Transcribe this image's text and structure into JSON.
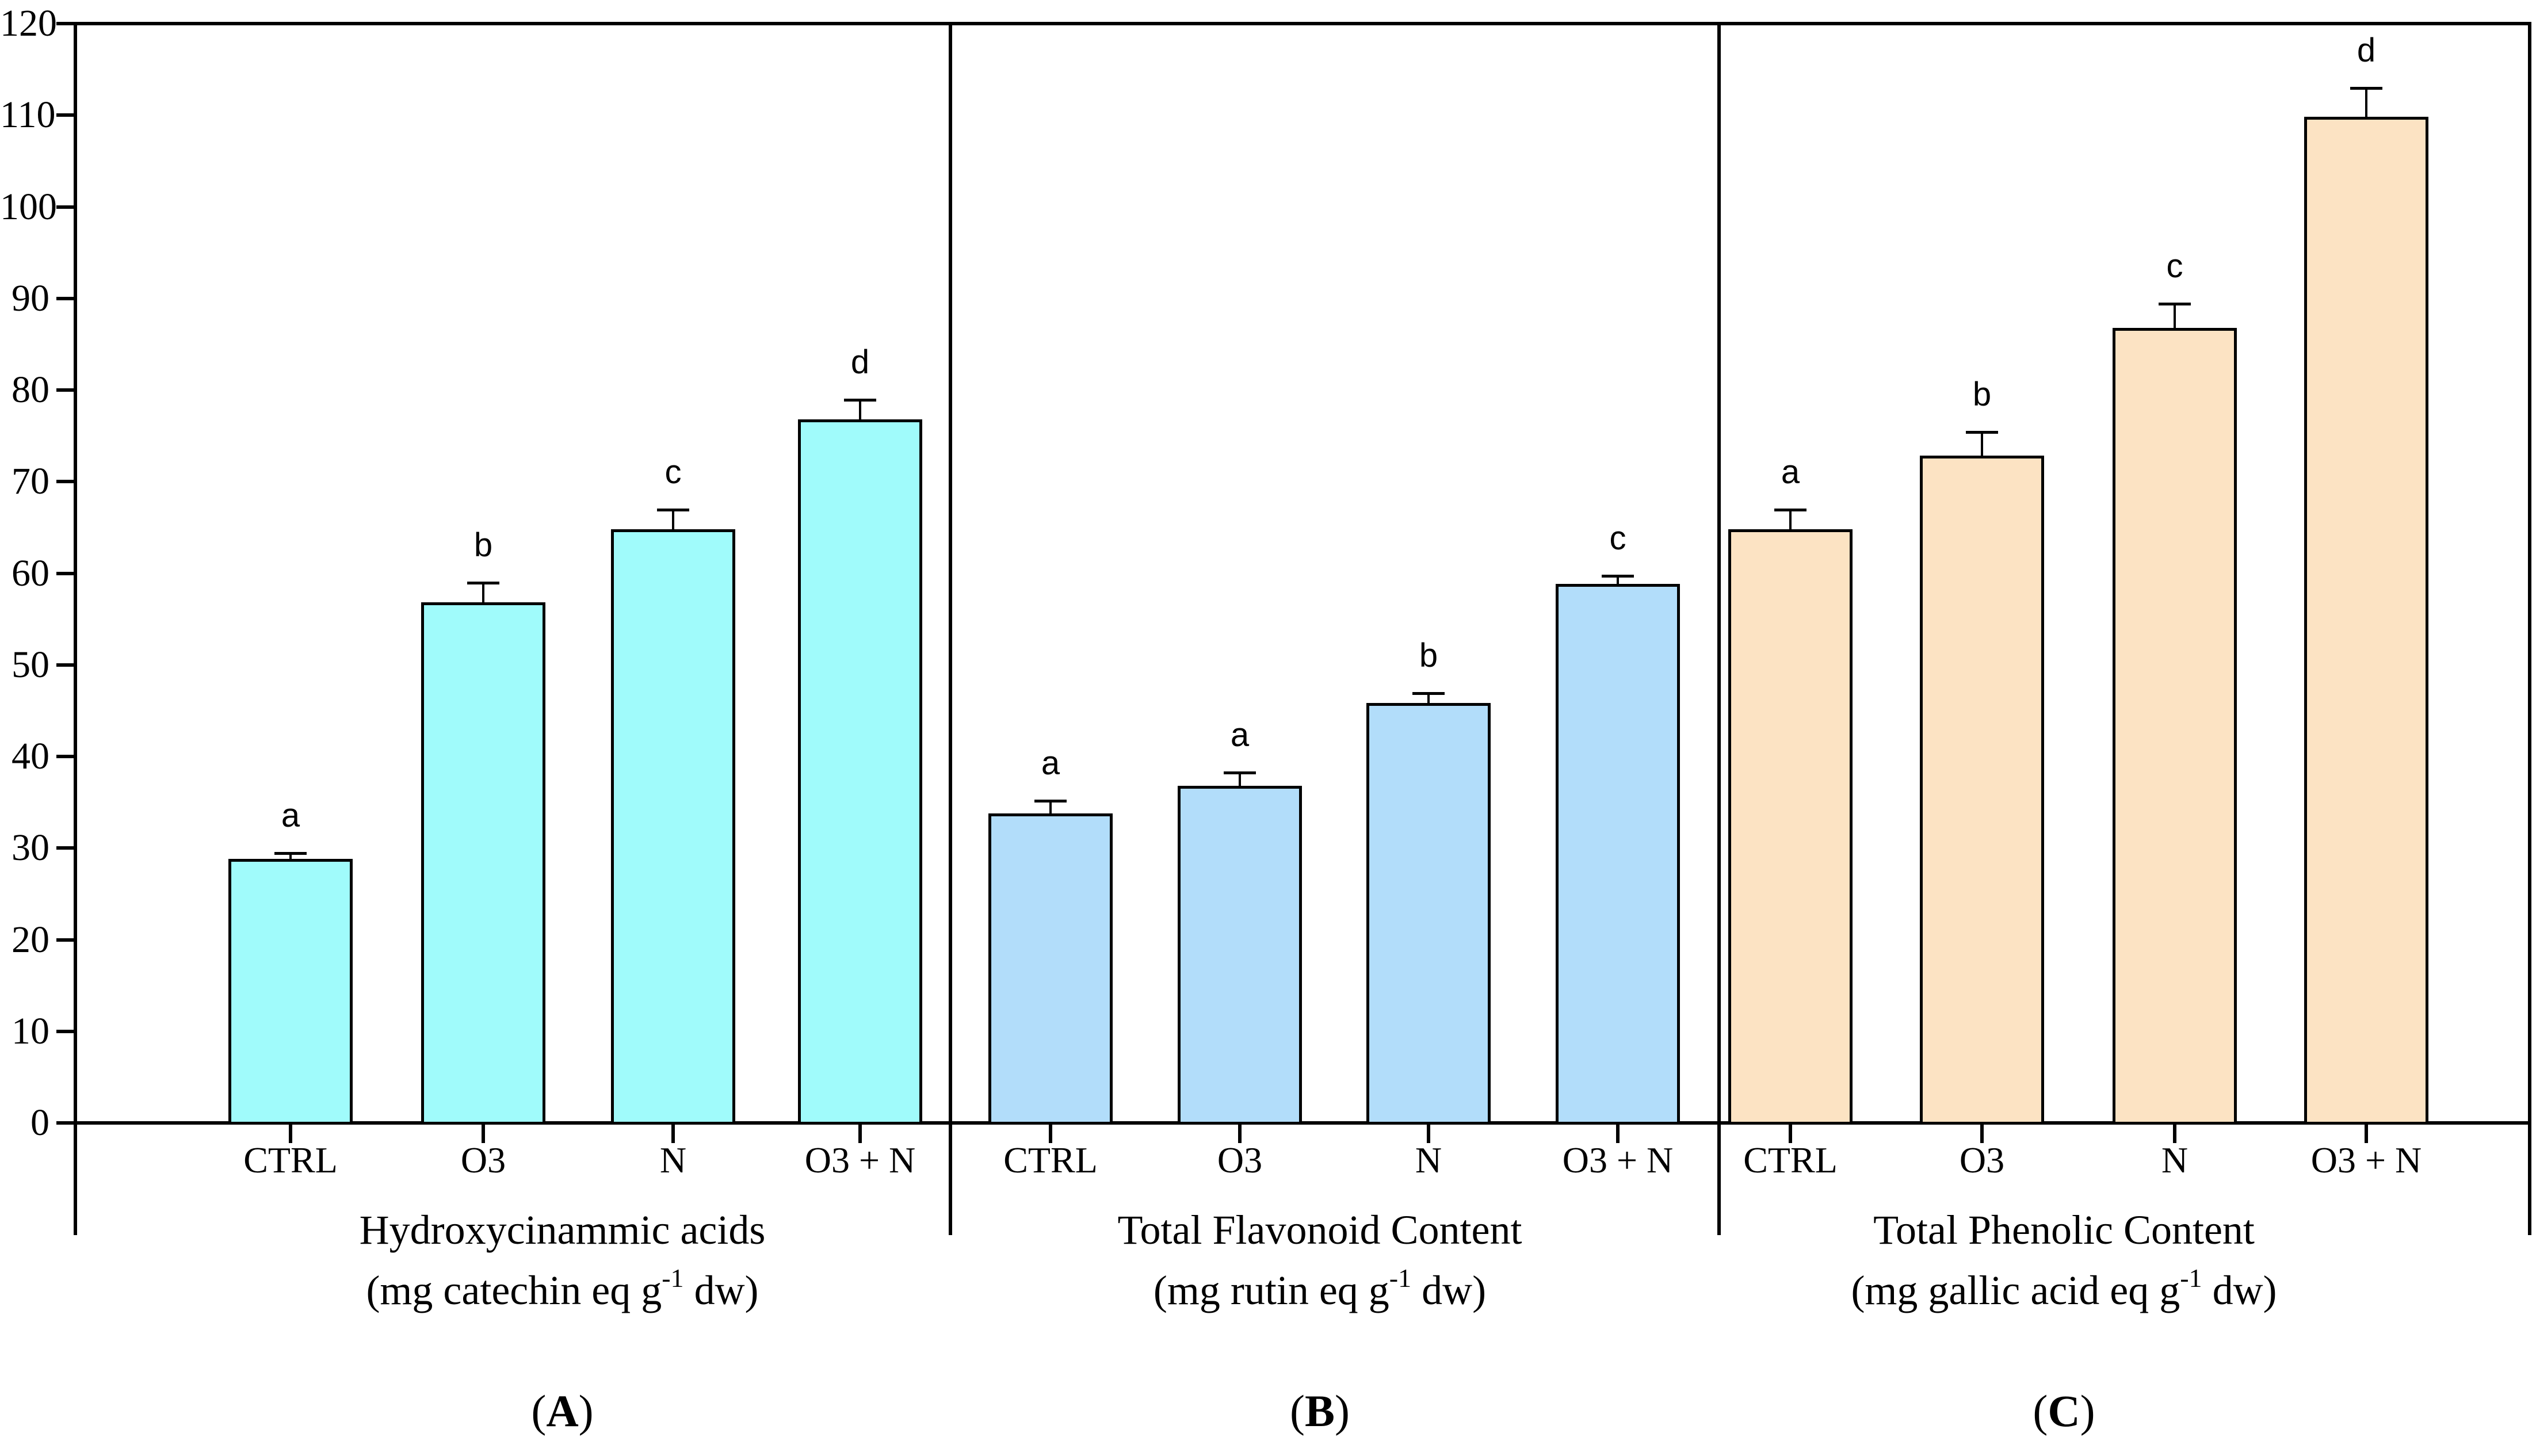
{
  "figure": {
    "background_color": "#FFFFFF",
    "axis_color": "#000000"
  },
  "y_axis": {
    "range": [
      0,
      120
    ],
    "ticks": [
      0,
      10,
      20,
      30,
      40,
      50,
      60,
      70,
      80,
      90,
      100,
      110,
      120
    ]
  },
  "chart_data": [
    {
      "type": "bar",
      "panel_label": {
        "open": "(",
        "letter": "A",
        "close": ")"
      },
      "title": "Hydroxycinammic acids",
      "unit_line": {
        "prefix": "(mg catechin eq g",
        "superscript": "-1",
        "suffix": " dw)"
      },
      "categories": [
        "CTRL",
        "O3",
        "N",
        "O3 + N"
      ],
      "values": [
        29,
        57,
        65,
        77
      ],
      "errors_plus": [
        0.5,
        2,
        2,
        2
      ],
      "sig_letters": [
        "a",
        "b",
        "c",
        "d"
      ],
      "bar_color": "#A0FBFB",
      "ylim": [
        0,
        120
      ],
      "grid": false,
      "legend": "none"
    },
    {
      "type": "bar",
      "panel_label": {
        "open": "(",
        "letter": "B",
        "close": ")"
      },
      "title": "Total Flavonoid Content",
      "unit_line": {
        "prefix": "(mg rutin eq g",
        "superscript": "-1",
        "suffix": " dw)"
      },
      "categories": [
        "CTRL",
        "O3",
        "N",
        "O3 + N"
      ],
      "values": [
        34,
        37,
        46,
        59
      ],
      "errors_plus": [
        1.2,
        1.3,
        1,
        0.8
      ],
      "sig_letters": [
        "a",
        "a",
        "b",
        "c"
      ],
      "bar_color": "#B2DDFA",
      "ylim": [
        0,
        120
      ],
      "grid": false,
      "legend": "none"
    },
    {
      "type": "bar",
      "panel_label": {
        "open": "(",
        "letter": "C",
        "close": ")"
      },
      "title": "Total Phenolic Content",
      "unit_line": {
        "prefix": "(mg gallic acid eq g",
        "superscript": "-1",
        "suffix": " dw)"
      },
      "categories": [
        "CTRL",
        "O3",
        "N",
        "O3 + N"
      ],
      "values": [
        65,
        73,
        87,
        110
      ],
      "errors_plus": [
        2,
        2.5,
        2.5,
        3
      ],
      "sig_letters": [
        "a",
        "b",
        "c",
        "d"
      ],
      "bar_color": "#FCE3C3",
      "ylim": [
        0,
        120
      ],
      "grid": false,
      "legend": "none"
    }
  ]
}
